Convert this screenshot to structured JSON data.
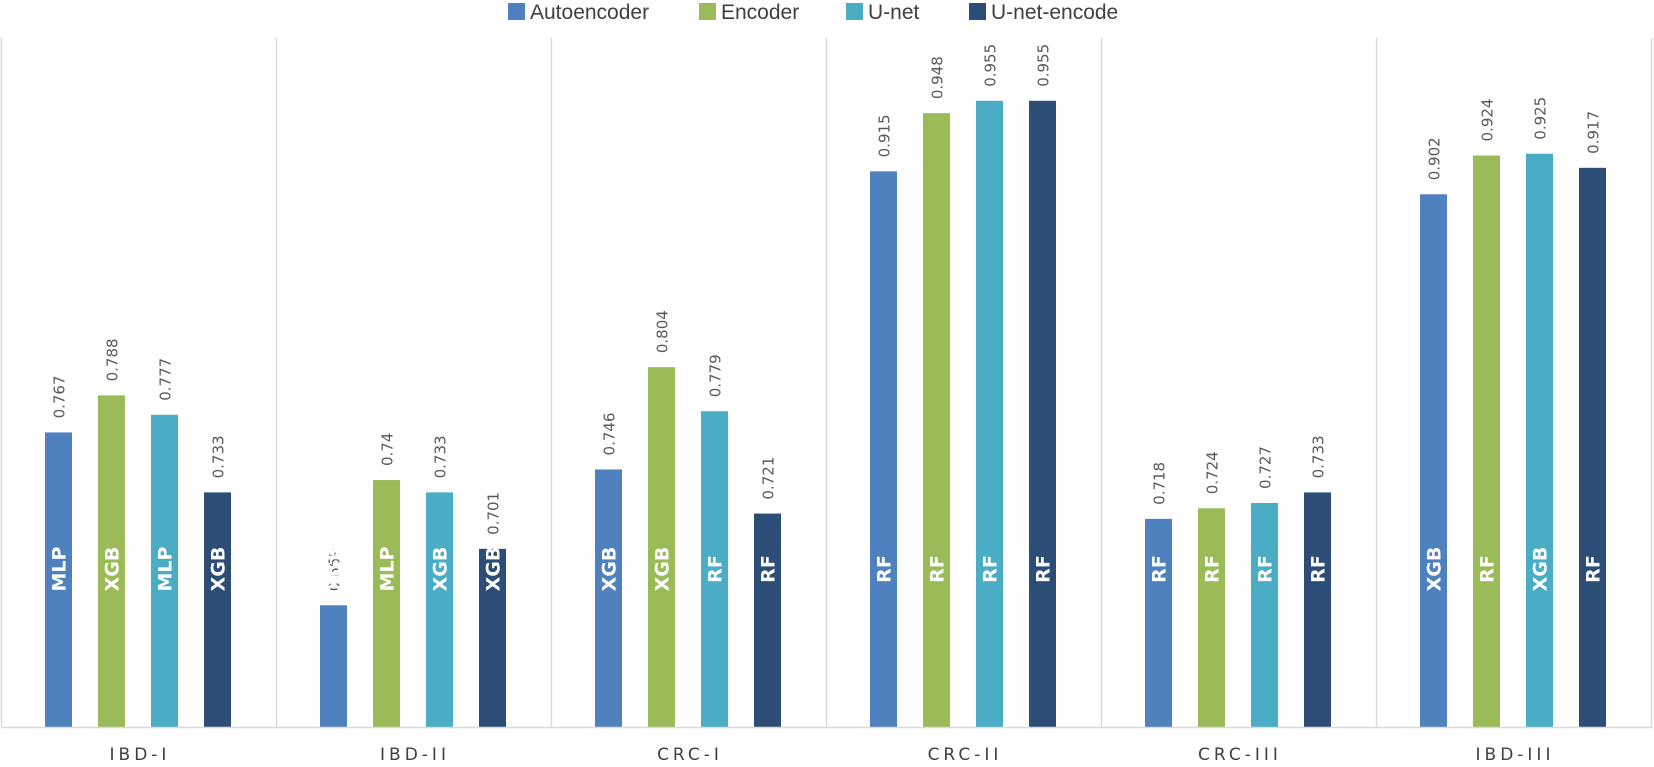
{
  "chart_data": {
    "type": "bar",
    "title": "",
    "xlabel": "",
    "ylabel": "",
    "categories": [
      "IBD-I",
      "IBD-II",
      "CRC-I",
      "CRC-II",
      "CRC-III",
      "IBD-III"
    ],
    "legend_position": "top-center",
    "grid": false,
    "ylim": [
      0.6,
      0.97
    ],
    "series": [
      {
        "name": "Autoencoder",
        "color": "#4e81bd",
        "values": [
          0.767,
          0.669,
          0.746,
          0.915,
          0.718,
          0.902
        ],
        "value_labels": [
          "0.767",
          "0.669",
          "0.746",
          "0.915",
          "0.718",
          "0.902"
        ],
        "methods": [
          "MLP",
          "XGB",
          "XGB",
          "RF",
          "RF",
          "XGB"
        ]
      },
      {
        "name": "Encoder",
        "color": "#9bbb59",
        "values": [
          0.788,
          0.74,
          0.804,
          0.948,
          0.724,
          0.924
        ],
        "value_labels": [
          "0.788",
          "0.74",
          "0.804",
          "0.948",
          "0.724",
          "0.924"
        ],
        "methods": [
          "XGB",
          "MLP",
          "XGB",
          "RF",
          "RF",
          "RF"
        ]
      },
      {
        "name": "U-net",
        "color": "#4bacc6",
        "values": [
          0.777,
          0.733,
          0.779,
          0.955,
          0.727,
          0.925
        ],
        "value_labels": [
          "0.777",
          "0.733",
          "0.779",
          "0.955",
          "0.727",
          "0.925"
        ],
        "methods": [
          "MLP",
          "XGB",
          "RF",
          "RF",
          "RF",
          "XGB"
        ]
      },
      {
        "name": "U-net-encode",
        "color": "#2c4d75",
        "values": [
          0.733,
          0.701,
          0.721,
          0.955,
          0.733,
          0.917
        ],
        "value_labels": [
          "0.733",
          "0.701",
          "0.721",
          "0.955",
          "0.733",
          "0.917"
        ],
        "methods": [
          "XGB",
          "XGB",
          "RF",
          "RF",
          "RF",
          "RF"
        ]
      }
    ]
  }
}
